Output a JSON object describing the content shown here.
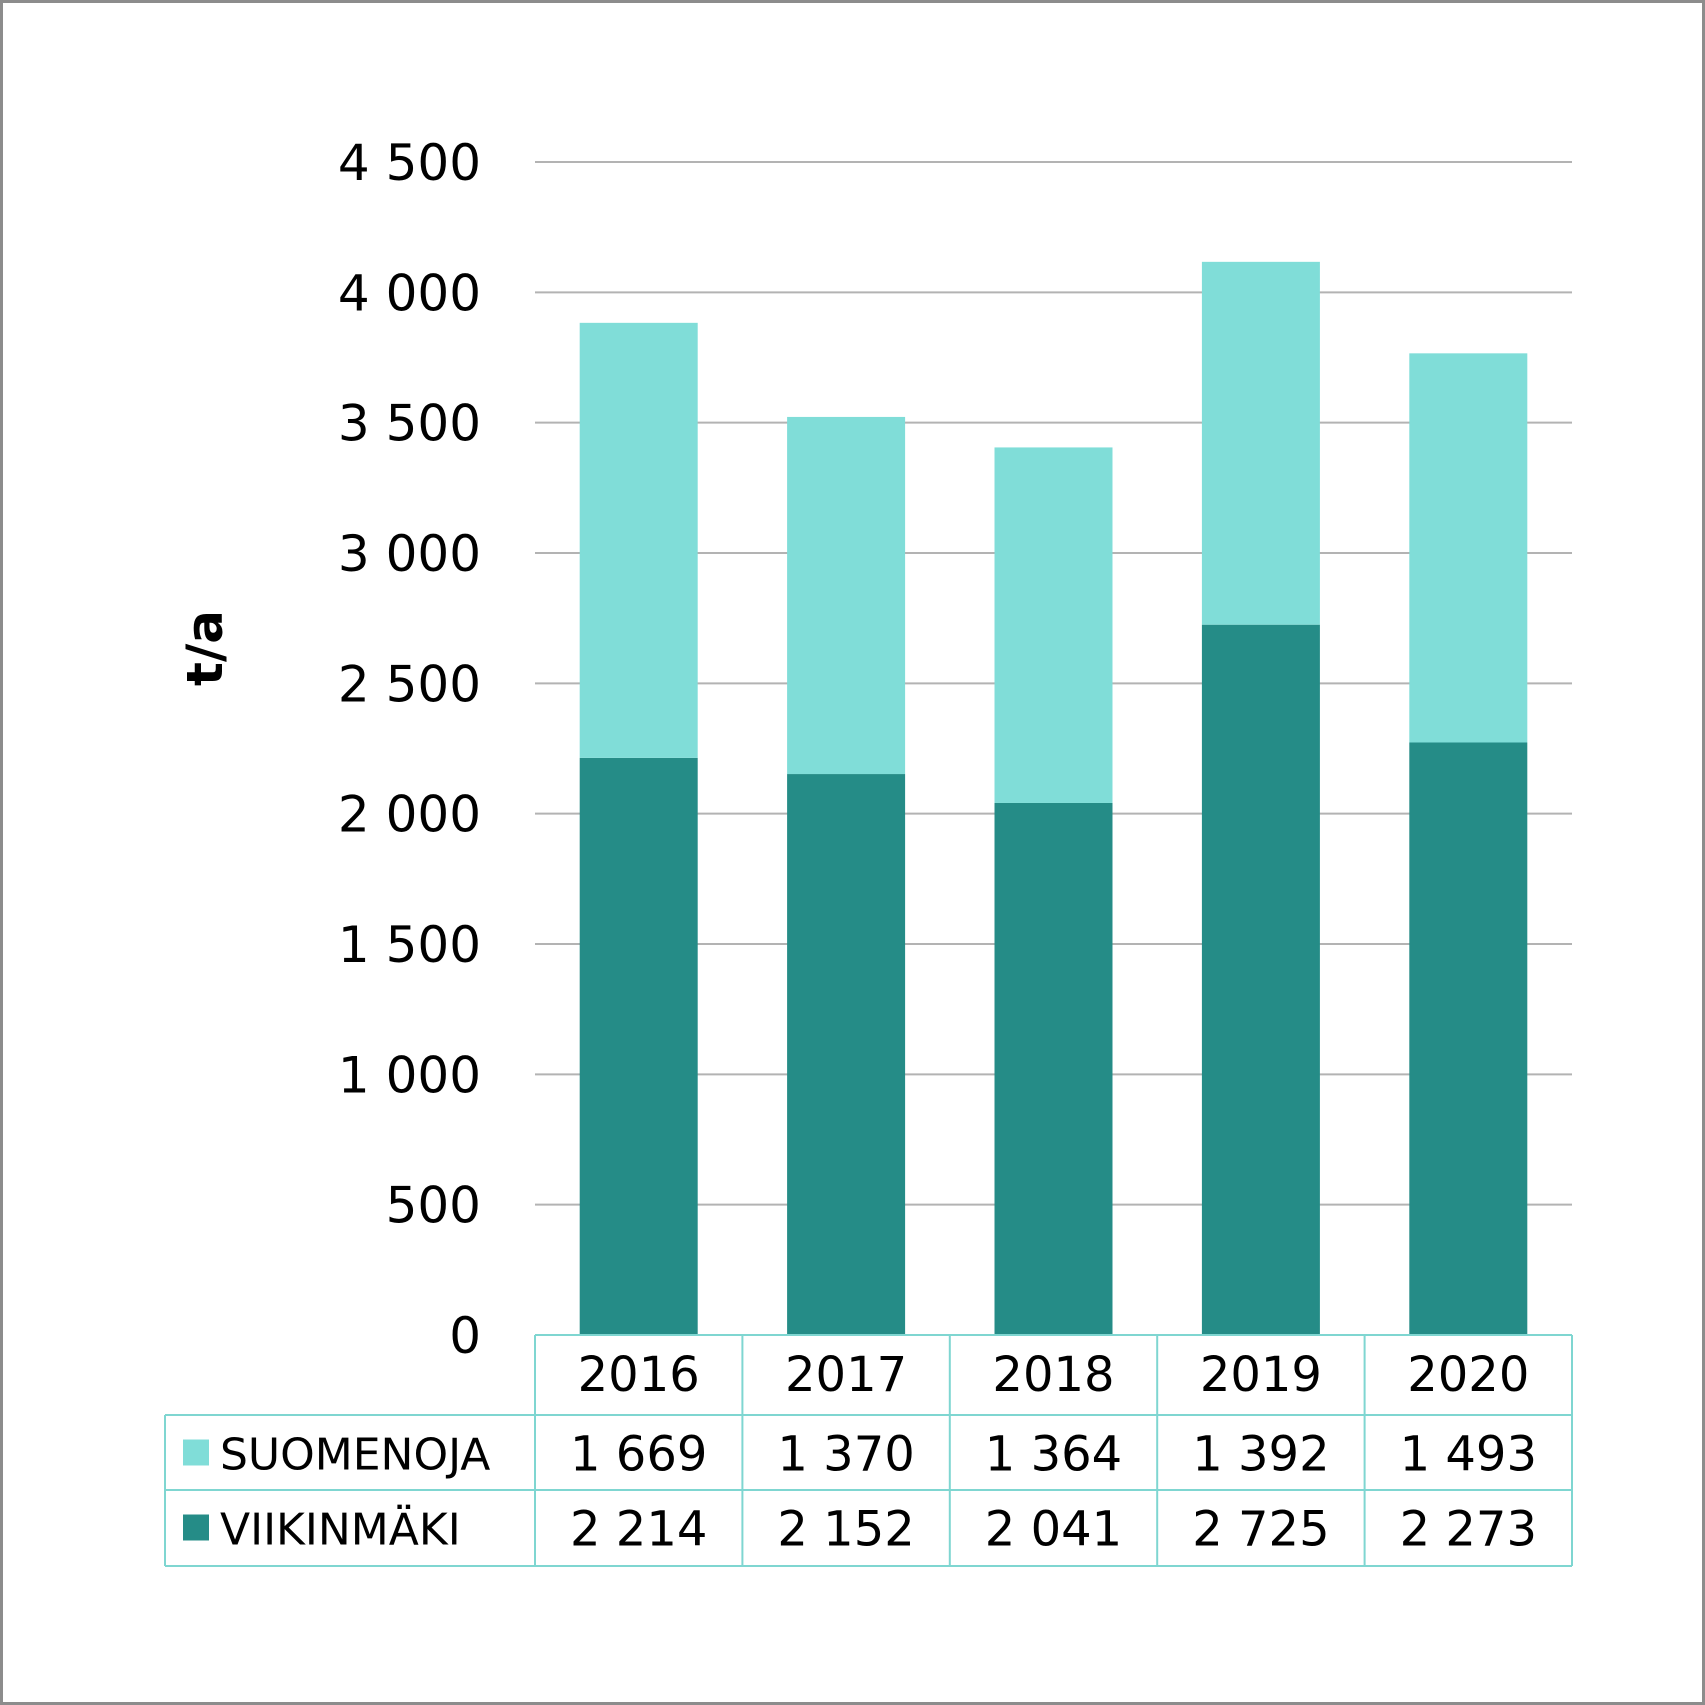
{
  "chart_data": {
    "type": "bar",
    "stacked": true,
    "categories": [
      "2016",
      "2017",
      "2018",
      "2019",
      "2020"
    ],
    "series": [
      {
        "name": "VIIKINMÄKI",
        "values": [
          2214,
          2152,
          2041,
          2725,
          2273
        ],
        "labels": [
          "2 214",
          "2 152",
          "2 041",
          "2 725",
          "2 273"
        ],
        "color": "#258c87"
      },
      {
        "name": "SUOMENOJA",
        "values": [
          1669,
          1370,
          1364,
          1392,
          1493
        ],
        "labels": [
          "1 669",
          "1 370",
          "1 364",
          "1 392",
          "1 493"
        ],
        "color": "#80ddd8"
      }
    ],
    "ylabel": "t/a",
    "ylim": [
      0,
      4500
    ],
    "yticks": [
      0,
      500,
      1000,
      1500,
      2000,
      2500,
      3000,
      3500,
      4000,
      4500
    ],
    "ytick_labels": [
      "0",
      "500",
      "1 000",
      "1 500",
      "2 000",
      "2 500",
      "3 000",
      "3 500",
      "4 000",
      "4 500"
    ],
    "grid": true,
    "legend": "data-table",
    "table_border_color": "#7fd6d1",
    "grid_color": "#b3b3b3"
  }
}
